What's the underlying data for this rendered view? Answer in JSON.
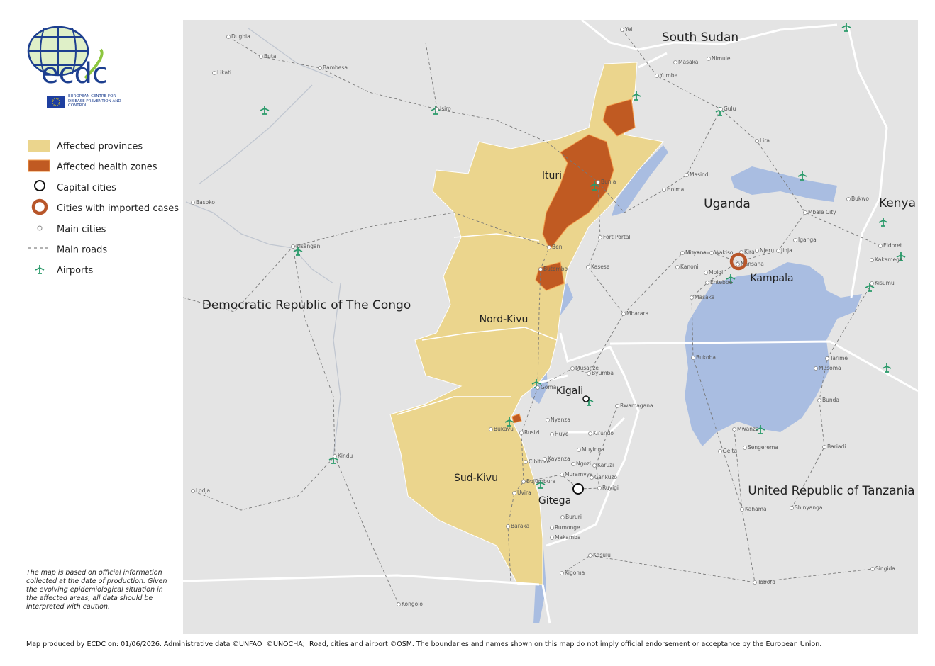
{
  "header": {
    "logo_text": "ecdc",
    "logo_subtitle": "EUROPEAN CENTRE FOR DISEASE PREVENTION AND CONTROL"
  },
  "legend": {
    "items": [
      "Affected provinces",
      "Affected health zones",
      "Capital cities",
      "Cities with imported cases",
      "Main cities",
      "Main roads",
      "Airports"
    ]
  },
  "map": {
    "countries": [
      "South Sudan",
      "Uganda",
      "Kenya",
      "Democratic Republic of The Congo",
      "United Republic of Tanzania"
    ],
    "provinces": [
      "Ituri",
      "Nord-Kivu",
      "Sud-Kivu"
    ],
    "capitals": [
      "Kampala",
      "Kigali",
      "Gitega"
    ],
    "cities": [
      "Dugbia",
      "Buta",
      "Likati",
      "Bambesa",
      "Isiro",
      "Basoko",
      "Kisangani",
      "Kindu",
      "Lodja",
      "Kongolo",
      "Yei",
      "Masaka",
      "Nimule",
      "Yumbe",
      "Gulu",
      "Lira",
      "Masindi",
      "Hoima",
      "Bunia",
      "Fort Portal",
      "Kasese",
      "Mbarara",
      "Mityana",
      "Wakiso",
      "Kira",
      "Njeru",
      "Jinja",
      "Iganga",
      "Mbale City",
      "Bukwo",
      "Eldoret",
      "Kakamega",
      "Kisumu",
      "Kanoni",
      "Mpigi",
      "Entebbe",
      "Nansana",
      "Masaka",
      "Bukoba",
      "Tarime",
      "Musoma",
      "Bunda",
      "Mwanza",
      "Geita",
      "Sengerema",
      "Bariadi",
      "Kahama",
      "Shinyanga",
      "Singida",
      "Tabora",
      "Kasulu",
      "Kigoma",
      "Beni",
      "Butembo",
      "Goma",
      "Bukavu",
      "Rusizi",
      "Musanze",
      "Byumba",
      "Rwamagana",
      "Nyanza",
      "Huye",
      "Kirundo",
      "Muyinga",
      "Ngozi",
      "Karuzi",
      "Cankuzo",
      "Ruyigi",
      "Muramvya",
      "Bujumbura",
      "Cibitoke",
      "Kayanza",
      "Uvira",
      "Rumonge",
      "Makamba",
      "Bururi",
      "Baraka"
    ]
  },
  "note": "The map is based on official information collected at the date of production. Given the evolving epidemiological situation in the affected areas, all data should be interpreted with caution.",
  "footer": "Map produced by ECDC on: 01/06/2026. Administrative data ©UNFAO  ©UNOCHA;  Road, cities and airport ©OSM. The boundaries and names shown on this map do not imply official endorsement or acceptance by the European Union."
}
